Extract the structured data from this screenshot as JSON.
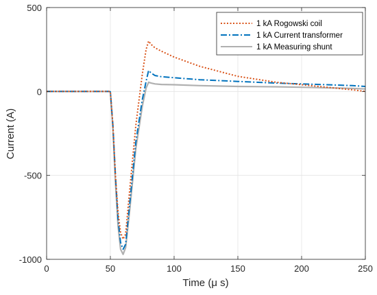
{
  "chart_data": {
    "type": "line",
    "title": "",
    "xlabel": "Time (μ s)",
    "ylabel": "Current (A)",
    "xlim": [
      0,
      250
    ],
    "ylim": [
      -1000,
      500
    ],
    "xticks": [
      0,
      50,
      100,
      150,
      200,
      250
    ],
    "yticks": [
      -1000,
      -500,
      0,
      500
    ],
    "grid": true,
    "legend_position": "top-right",
    "series": [
      {
        "name": "1 kA Rogowski coil",
        "color": "#D95319",
        "style": "dotted",
        "x": [
          0,
          49,
          50,
          52,
          54,
          56,
          58,
          60,
          62,
          65,
          70,
          75,
          78,
          80,
          82,
          85,
          90,
          100,
          120,
          150,
          180,
          200,
          220,
          240,
          250
        ],
        "y": [
          0,
          0,
          -2,
          -200,
          -500,
          -720,
          -840,
          -880,
          -850,
          -600,
          -200,
          100,
          250,
          300,
          280,
          260,
          240,
          205,
          150,
          90,
          55,
          40,
          25,
          10,
          0
        ]
      },
      {
        "name": "1 kA Current transformer",
        "color": "#0072BD",
        "style": "dashdot",
        "x": [
          0,
          49,
          50,
          52,
          54,
          56,
          58,
          60,
          62,
          65,
          70,
          75,
          78,
          80,
          82,
          85,
          90,
          100,
          120,
          150,
          180,
          200,
          220,
          240,
          250
        ],
        "y": [
          0,
          0,
          -2,
          -200,
          -500,
          -760,
          -900,
          -940,
          -910,
          -680,
          -300,
          -50,
          60,
          125,
          110,
          95,
          88,
          82,
          70,
          60,
          50,
          45,
          40,
          35,
          30
        ]
      },
      {
        "name": "1 kA Measuring shunt",
        "color": "#B0B0B0",
        "style": "solid",
        "x": [
          0,
          49,
          50,
          52,
          54,
          56,
          58,
          60,
          62,
          65,
          70,
          75,
          78,
          80,
          82,
          85,
          90,
          100,
          120,
          150,
          180,
          200,
          220,
          240,
          250
        ],
        "y": [
          0,
          0,
          -2,
          -220,
          -540,
          -800,
          -940,
          -970,
          -930,
          -720,
          -340,
          -90,
          20,
          55,
          50,
          45,
          42,
          40,
          35,
          30,
          28,
          25,
          22,
          18,
          15
        ]
      }
    ]
  }
}
